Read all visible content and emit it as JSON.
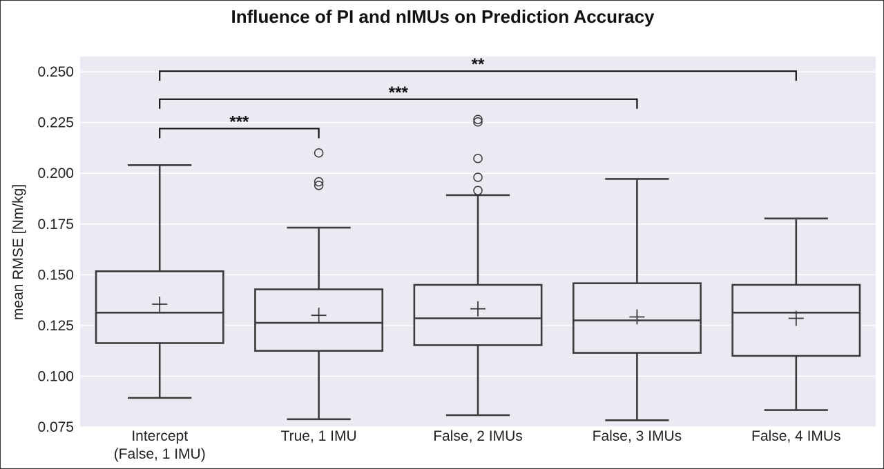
{
  "chart_data": {
    "type": "box",
    "title": "Influence of PI and nIMUs on Prediction Accuracy",
    "ylabel": "mean RMSE [Nm/kg]",
    "xlabel": "",
    "ylim": [
      0.075,
      0.2575
    ],
    "yticks": [
      "0.075",
      "0.100",
      "0.125",
      "0.150",
      "0.175",
      "0.200",
      "0.225",
      "0.250"
    ],
    "grid": true,
    "categories": [
      [
        "Intercept",
        "(False, 1 IMU)"
      ],
      [
        "True, 1 IMU"
      ],
      [
        "False, 2 IMUs"
      ],
      [
        "False, 3 IMUs"
      ],
      [
        "False, 4 IMUs"
      ]
    ],
    "boxes": [
      {
        "whislo": 0.0893,
        "q1": 0.1163,
        "med": 0.1313,
        "q3": 0.1517,
        "whishi": 0.204,
        "mean": 0.1355,
        "fliers": []
      },
      {
        "whislo": 0.0788,
        "q1": 0.1125,
        "med": 0.1263,
        "q3": 0.1428,
        "whishi": 0.1732,
        "mean": 0.13,
        "fliers": [
          0.194,
          0.1958,
          0.21
        ]
      },
      {
        "whislo": 0.0808,
        "q1": 0.1153,
        "med": 0.1285,
        "q3": 0.145,
        "whishi": 0.1892,
        "mean": 0.1332,
        "fliers": [
          0.1915,
          0.198,
          0.2073,
          0.2253,
          0.2265
        ]
      },
      {
        "whislo": 0.0783,
        "q1": 0.1115,
        "med": 0.1275,
        "q3": 0.1458,
        "whishi": 0.1972,
        "mean": 0.1292,
        "fliers": []
      },
      {
        "whislo": 0.0833,
        "q1": 0.11,
        "med": 0.1313,
        "q3": 0.145,
        "whishi": 0.1777,
        "mean": 0.1285,
        "fliers": []
      }
    ],
    "significance": [
      {
        "from": 0,
        "to": 1,
        "y": 0.222,
        "label": "***"
      },
      {
        "from": 0,
        "to": 3,
        "y": 0.2365,
        "label": "***"
      },
      {
        "from": 0,
        "to": 4,
        "y": 0.2503,
        "label": "**"
      }
    ],
    "colors": {
      "plot_bg": "#eaeaf2",
      "grid": "#ffffff",
      "box": "#3b3b3b",
      "text": "#222222"
    }
  }
}
